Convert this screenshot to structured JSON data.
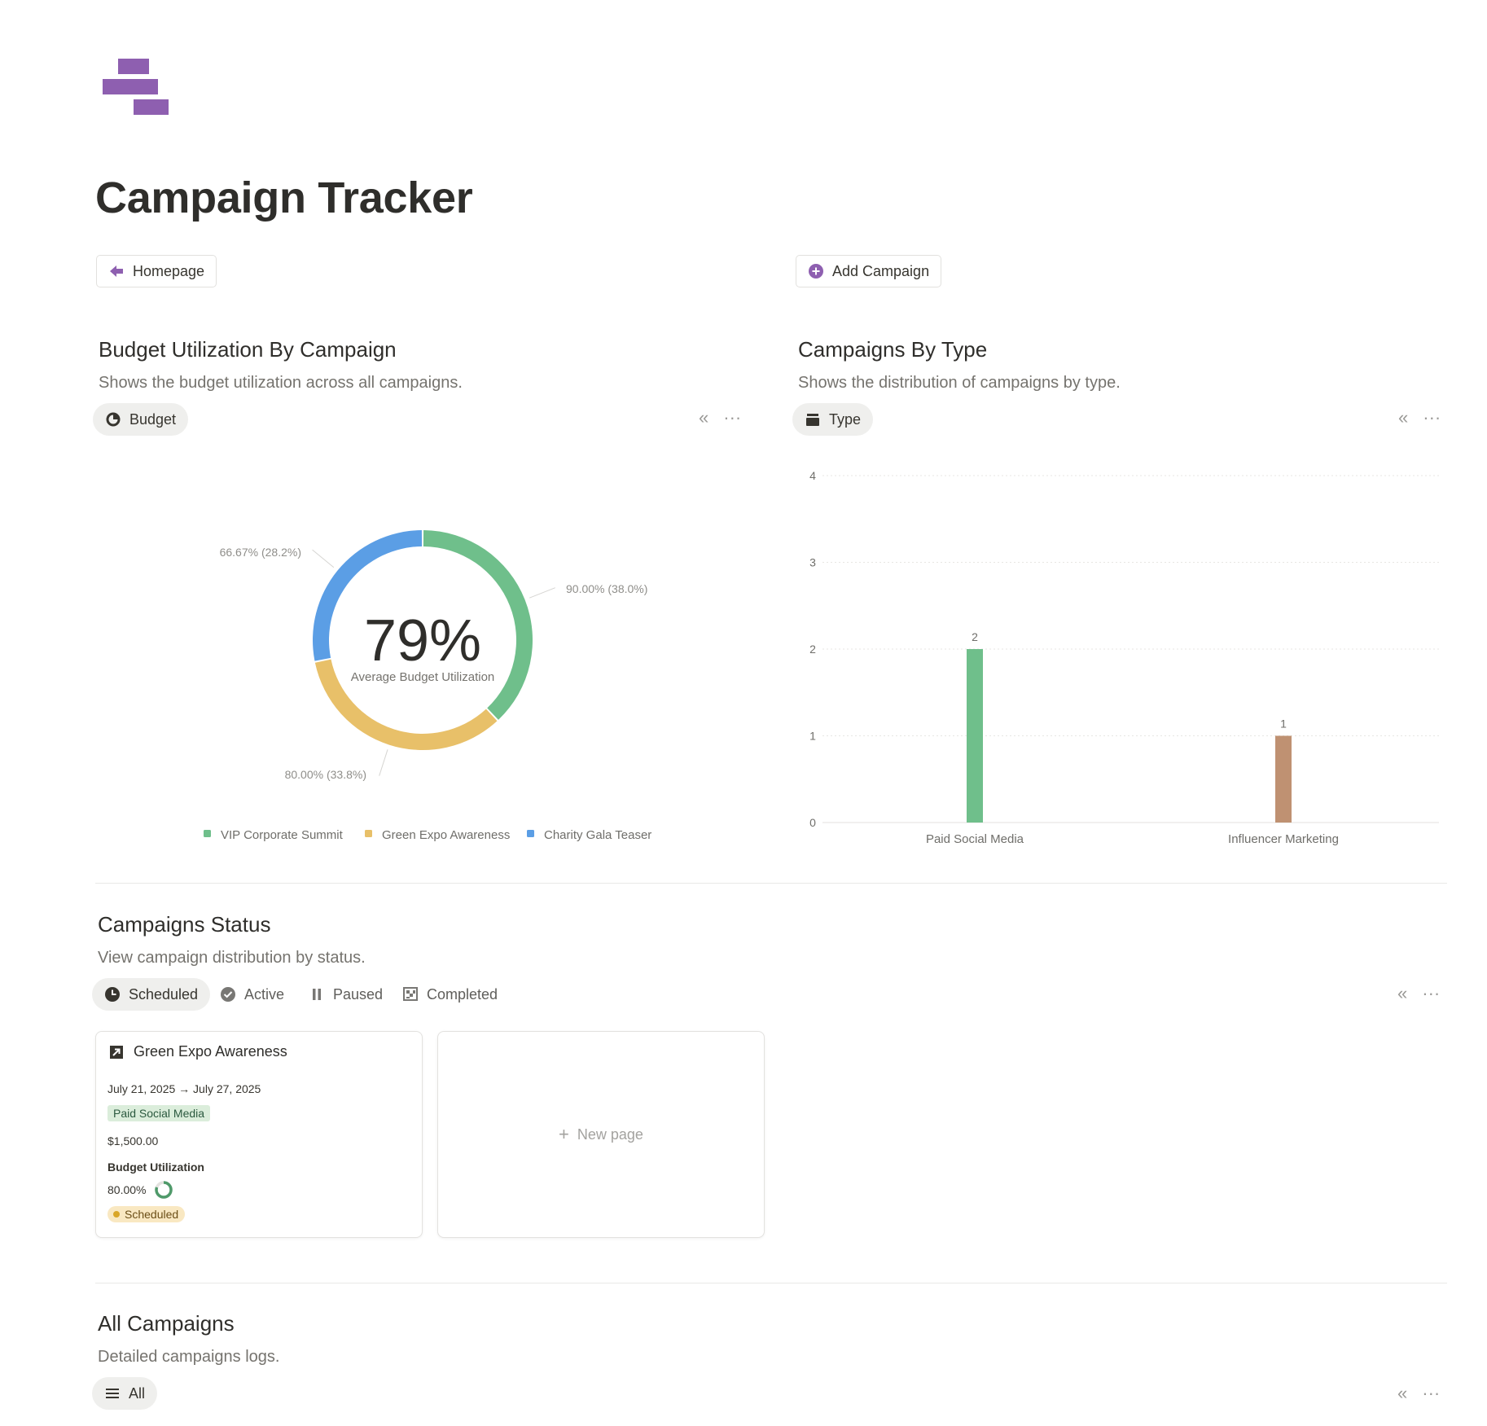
{
  "page": {
    "title": "Campaign Tracker"
  },
  "buttons": {
    "homepage": "Homepage",
    "add_campaign": "Add Campaign"
  },
  "budget_section": {
    "title": "Budget Utilization By Campaign",
    "description": "Shows the budget utilization across all campaigns.",
    "view_tab": "Budget",
    "center_value": "79%",
    "center_caption": "Average Budget Utilization"
  },
  "type_section": {
    "title": "Campaigns By Type",
    "description": "Shows the distribution of campaigns by type.",
    "view_tab": "Type"
  },
  "status_section": {
    "title": "Campaigns Status",
    "description": "View campaign distribution by status.",
    "tabs": [
      "Scheduled",
      "Active",
      "Paused",
      "Completed"
    ]
  },
  "cards": [
    {
      "title": "Green Expo Awareness",
      "dates": "July 21, 2025 → July 27, 2025",
      "type": "Paid Social Media",
      "budget": "$1,500.00",
      "utilization_label": "Budget Utilization",
      "utilization_value": "80.00%",
      "utilization_fraction": 0.8,
      "status": "Scheduled"
    }
  ],
  "new_page": "New page",
  "all_section": {
    "title": "All Campaigns",
    "description": "Detailed campaigns logs.",
    "view_tab": "All"
  },
  "colors": {
    "brand": "#8e5fb0",
    "green": "#6fbf8b",
    "yellow": "#e8c069",
    "blue": "#5b9ee5",
    "brown": "#bf9172"
  },
  "chart_data": [
    {
      "type": "pie",
      "series": [
        {
          "name": "VIP Corporate Summit",
          "value": 90.0,
          "label": "90.00% (38.0%)",
          "share": 38.0,
          "color": "#6fbf8b"
        },
        {
          "name": "Green Expo Awareness",
          "value": 80.0,
          "label": "80.00% (33.8%)",
          "share": 33.8,
          "color": "#e8c069"
        },
        {
          "name": "Charity Gala Teaser",
          "value": 66.67,
          "label": "66.67% (28.2%)",
          "share": 28.2,
          "color": "#5b9ee5"
        }
      ],
      "legend": "bottom"
    },
    {
      "type": "bar",
      "categories": [
        "Paid Social Media",
        "Influencer Marketing"
      ],
      "values": [
        2,
        1
      ],
      "colors": [
        "#6fbf8b",
        "#bf9172"
      ],
      "ylim": [
        0,
        4
      ],
      "yticks": [
        "0",
        "1",
        "2",
        "3",
        "4"
      ],
      "grid": true
    }
  ]
}
